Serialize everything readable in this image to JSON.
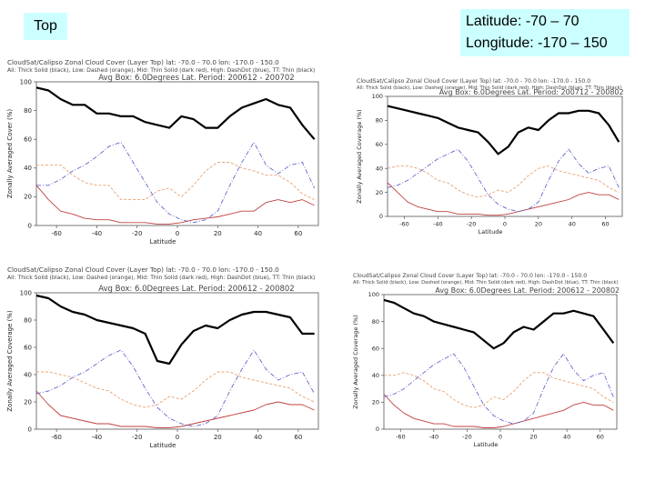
{
  "top_label": "Top",
  "range": {
    "latitude": "Latitude:  -70 – 70",
    "longitude": "Longitude: -170 – 150"
  },
  "colors": {
    "all_thick": "#000000",
    "low": "#e8a070",
    "mid": "#c04040",
    "high": "#6666cc",
    "thin": "#88aadd"
  },
  "chart_data": [
    {
      "type": "line",
      "title": "CloudSat/Calipso Zonal Cloud Cover (Layer Top) lat: -70.0 - 70.0 lon: -170.0 - 150.0",
      "legend_text": "All: Thick Solid (black), Low: Dashed (orange), Mid: Thin Solid (dark red), High: DashDot (blue), TT: Thin (black)",
      "subtitle": "Avg Box: 6.0Degrees Lat. Period: 200612 - 200702",
      "xlabel": "Latitude",
      "ylabel": "Zonally Averaged Cover (%)",
      "xlim": [
        -70,
        70
      ],
      "ylim": [
        0,
        100
      ],
      "xticks": [
        -60,
        -40,
        -20,
        0,
        20,
        40,
        60
      ],
      "yticks": [
        0,
        20,
        40,
        60,
        80,
        100
      ],
      "x": [
        -70,
        -64,
        -58,
        -52,
        -46,
        -40,
        -34,
        -28,
        -22,
        -16,
        -10,
        -4,
        2,
        8,
        14,
        20,
        26,
        32,
        38,
        44,
        50,
        56,
        62,
        68
      ],
      "series": [
        {
          "style": "all",
          "values": [
            96,
            94,
            88,
            84,
            84,
            78,
            78,
            76,
            76,
            72,
            70,
            68,
            76,
            74,
            68,
            68,
            76,
            82,
            85,
            88,
            84,
            82,
            70,
            60
          ]
        },
        {
          "style": "low",
          "values": [
            42,
            42,
            42,
            35,
            30,
            28,
            28,
            18,
            18,
            18,
            24,
            26,
            20,
            28,
            38,
            44,
            44,
            40,
            38,
            35,
            35,
            30,
            22,
            18
          ]
        },
        {
          "style": "mid",
          "values": [
            28,
            18,
            10,
            8,
            5,
            4,
            4,
            2,
            2,
            2,
            1,
            1,
            2,
            4,
            5,
            6,
            8,
            10,
            10,
            16,
            18,
            16,
            18,
            14
          ]
        },
        {
          "style": "high",
          "values": [
            28,
            28,
            32,
            38,
            42,
            48,
            55,
            58,
            44,
            30,
            16,
            8,
            4,
            2,
            4,
            10,
            28,
            44,
            58,
            42,
            36,
            42,
            44,
            26
          ]
        }
      ]
    },
    {
      "type": "line",
      "title": "CloudSat/Calipso Zonal Cloud Cover (Layer Top) lat: -70.0 - 70.0 lon: -170.0 - 150.0",
      "legend_text": "All: Thick Solid (black), Low: Dashed (orange), Mid: Thin Solid (dark red), High: DashDot (blue), TT: Thin (black)",
      "subtitle": "Avg Box: 6.0Degrees Lat. Period: 200712 - 200802",
      "xlabel": "Latitude",
      "ylabel": "Zonally Averaged Coverage (%)",
      "xlim": [
        -70,
        70
      ],
      "ylim": [
        0,
        100
      ],
      "xticks": [
        -60,
        -40,
        -20,
        0,
        20,
        40,
        60
      ],
      "yticks": [
        0,
        20,
        40,
        60,
        80,
        100
      ],
      "x": [
        -70,
        -64,
        -58,
        -52,
        -46,
        -40,
        -34,
        -28,
        -22,
        -16,
        -10,
        -4,
        2,
        8,
        14,
        20,
        26,
        32,
        38,
        44,
        50,
        56,
        62,
        68
      ],
      "series": [
        {
          "style": "all",
          "values": [
            92,
            90,
            88,
            86,
            84,
            82,
            78,
            74,
            72,
            70,
            62,
            52,
            58,
            70,
            74,
            72,
            80,
            86,
            86,
            88,
            88,
            86,
            76,
            62
          ]
        },
        {
          "style": "low",
          "values": [
            40,
            42,
            42,
            40,
            36,
            30,
            28,
            22,
            18,
            16,
            18,
            22,
            20,
            26,
            34,
            40,
            42,
            38,
            36,
            34,
            32,
            30,
            24,
            20
          ]
        },
        {
          "style": "mid",
          "values": [
            28,
            20,
            12,
            8,
            6,
            4,
            4,
            2,
            2,
            2,
            1,
            1,
            2,
            4,
            6,
            8,
            10,
            12,
            14,
            18,
            20,
            18,
            18,
            14
          ]
        },
        {
          "style": "high",
          "values": [
            24,
            26,
            30,
            36,
            42,
            48,
            52,
            56,
            46,
            32,
            18,
            10,
            6,
            4,
            6,
            12,
            30,
            46,
            56,
            44,
            36,
            40,
            42,
            24
          ]
        }
      ]
    },
    {
      "type": "line",
      "title": "CloudSat/Calipso Zonal Cloud Cover (Layer Top) lat: -70.0 - 70.0 lon: -170.0 - 150.0",
      "legend_text": "All: Thick Solid (black), Low: Dashed (orange), Mid: Thin Solid (dark red), High: DashDot (blue), TT: Thin (black)",
      "subtitle": "Avg Box: 6.0Degrees Lat. Period: 200612 - 200802",
      "xlabel": "Latitude",
      "ylabel": "Zonally Averaged Coverage (%)",
      "xlim": [
        -70,
        70
      ],
      "ylim": [
        0,
        100
      ],
      "xticks": [
        -60,
        -40,
        -20,
        0,
        20,
        40,
        60
      ],
      "yticks": [
        0,
        20,
        40,
        60,
        80,
        100
      ],
      "x": [
        -70,
        -64,
        -58,
        -52,
        -46,
        -40,
        -34,
        -28,
        -22,
        -16,
        -10,
        -4,
        2,
        8,
        14,
        20,
        26,
        32,
        38,
        44,
        50,
        56,
        62,
        68
      ],
      "series": [
        {
          "style": "all",
          "values": [
            98,
            96,
            90,
            86,
            84,
            80,
            78,
            76,
            74,
            70,
            50,
            48,
            62,
            72,
            76,
            74,
            80,
            84,
            86,
            86,
            84,
            82,
            70,
            70
          ]
        },
        {
          "style": "low",
          "values": [
            42,
            42,
            40,
            38,
            34,
            30,
            28,
            22,
            18,
            16,
            18,
            24,
            22,
            28,
            36,
            42,
            42,
            38,
            36,
            34,
            32,
            30,
            24,
            20
          ]
        },
        {
          "style": "mid",
          "values": [
            28,
            18,
            10,
            8,
            6,
            4,
            4,
            2,
            2,
            2,
            1,
            1,
            2,
            4,
            6,
            8,
            10,
            12,
            14,
            18,
            20,
            18,
            18,
            14
          ]
        },
        {
          "style": "high",
          "values": [
            26,
            28,
            32,
            38,
            42,
            48,
            54,
            58,
            46,
            30,
            16,
            8,
            4,
            2,
            4,
            10,
            28,
            44,
            58,
            44,
            36,
            40,
            42,
            26
          ]
        }
      ]
    },
    {
      "type": "line",
      "title": "CloudSat/Calipso Zonal Cloud Cover (Layer Top) lat: -70.0 - 70.0 lon: -170.0 - 150.0",
      "legend_text": "All: Thick Solid (black), Low: Dashed (orange), Mid: Thin Solid (dark red), High: DashDot (blue), TT: Thin (black)",
      "subtitle": "Avg Box: 6.0Degrees Lat. Period: 200612 - 200802",
      "xlabel": "Latitude",
      "ylabel": "Zonally Averaged Coverage (%)",
      "xlim": [
        -70,
        70
      ],
      "ylim": [
        0,
        100
      ],
      "xticks": [
        -60,
        -40,
        -20,
        0,
        20,
        40,
        60
      ],
      "yticks": [
        0,
        20,
        40,
        60,
        80,
        100
      ],
      "x": [
        -70,
        -64,
        -58,
        -52,
        -46,
        -40,
        -34,
        -28,
        -22,
        -16,
        -10,
        -4,
        2,
        8,
        14,
        20,
        26,
        32,
        38,
        44,
        50,
        56,
        62,
        68
      ],
      "series": [
        {
          "style": "all",
          "values": [
            96,
            94,
            90,
            86,
            84,
            80,
            78,
            76,
            74,
            72,
            66,
            60,
            64,
            72,
            76,
            74,
            80,
            86,
            86,
            88,
            86,
            84,
            74,
            64
          ]
        },
        {
          "style": "low",
          "values": [
            40,
            40,
            42,
            40,
            36,
            30,
            28,
            22,
            18,
            16,
            18,
            24,
            22,
            28,
            36,
            42,
            42,
            38,
            36,
            34,
            32,
            30,
            24,
            20
          ]
        },
        {
          "style": "mid",
          "values": [
            26,
            18,
            12,
            8,
            6,
            4,
            4,
            2,
            2,
            2,
            1,
            1,
            2,
            4,
            6,
            8,
            10,
            12,
            14,
            18,
            20,
            18,
            18,
            14
          ]
        },
        {
          "style": "high",
          "values": [
            24,
            26,
            30,
            36,
            42,
            48,
            52,
            56,
            46,
            32,
            18,
            10,
            6,
            4,
            6,
            12,
            30,
            46,
            56,
            44,
            36,
            40,
            42,
            24
          ]
        }
      ]
    }
  ]
}
